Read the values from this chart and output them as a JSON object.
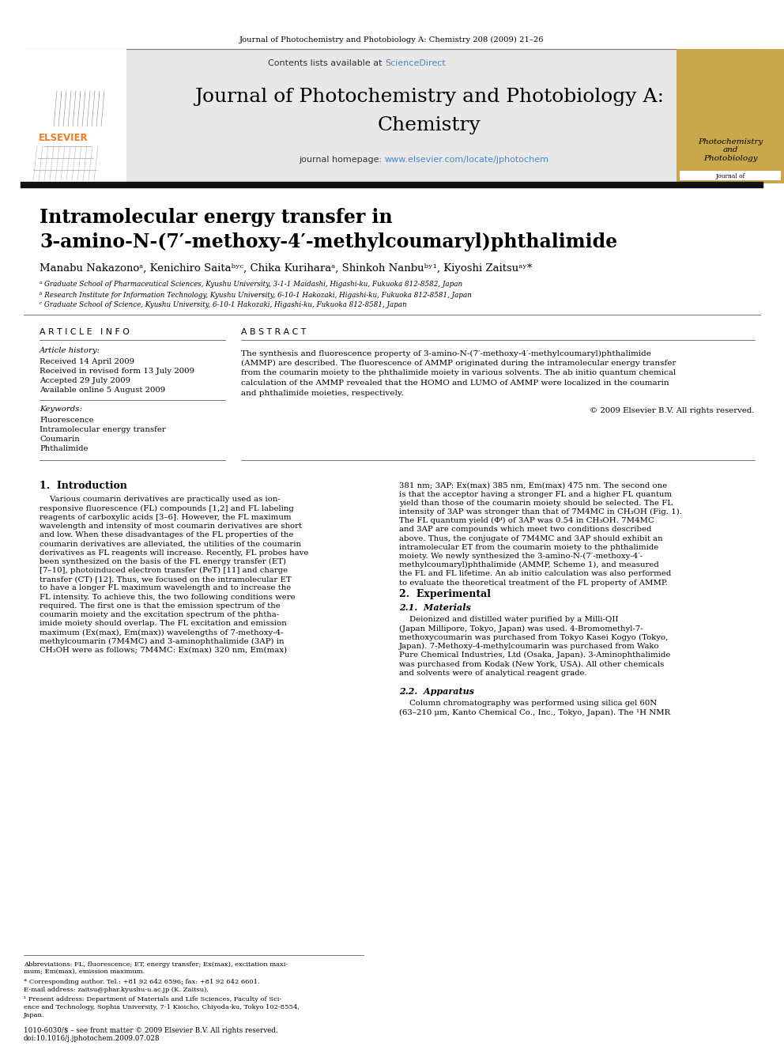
{
  "page_bg": "#ffffff",
  "top_journal_ref": "Journal of Photochemistry and Photobiology A: Chemistry 208 (2009) 21–26",
  "header_bg": "#e8e8e8",
  "header_contents_text": "Contents lists available at ",
  "header_sciencedirect": "ScienceDirect",
  "header_sciencedirect_color": "#4a86c8",
  "journal_title_line1": "Journal of Photochemistry and Photobiology A:",
  "journal_title_line2": "Chemistry",
  "journal_homepage_text": "journal homepage: ",
  "journal_homepage_url": "www.elsevier.com/locate/jphotochem",
  "journal_homepage_url_color": "#4a86c8",
  "article_title_line1": "Intramolecular energy transfer in",
  "article_title_line2": "3-amino-N-(7′-methoxy-4′-methylcoumaryl)phthalimide",
  "authors": "Manabu Nakazonoᵃ, Kenichiro Saitaᵇʸᶜ, Chika Kuriharaᵃ, Shinkoh Nanbuᵇʸ¹, Kiyoshi Zaitsuᵃʸ*",
  "affil_a": "ᵃ Graduate School of Pharmaceutical Sciences, Kyushu University, 3-1-1 Maidashi, Higashi-ku, Fukuoka 812-8582, Japan",
  "affil_b": "ᵇ Research Institute for Information Technology, Kyushu University, 6-10-1 Hakozaki, Higashi-ku, Fukuoka 812-8581, Japan",
  "affil_c": "ᶜ Graduate School of Science, Kyushu University, 6-10-1 Hakozaki, Higashi-ku, Fukuoka 812-8581, Japan",
  "article_info_header": "A R T I C L E   I N F O",
  "abstract_header": "A B S T R A C T",
  "article_history_label": "Article history:",
  "received": "Received 14 April 2009",
  "revised": "Received in revised form 13 July 2009",
  "accepted": "Accepted 29 July 2009",
  "available": "Available online 5 August 2009",
  "keywords_label": "Keywords:",
  "keyword1": "Fluorescence",
  "keyword2": "Intramolecular energy transfer",
  "keyword3": "Coumarin",
  "keyword4": "Phthalimide",
  "abstract_text": "The synthesis and fluorescence property of 3-amino-N-(7′-methoxy-4′-methylcoumaryl)phthalimide\n(AMMP) are described. The fluorescence of AMMP originated during the intramolecular energy transfer\nfrom the coumarin moiety to the phthalimide moiety in various solvents. The ab initio quantum chemical\ncalculation of the AMMP revealed that the HOMO and LUMO of AMMP were localized in the coumarin\nand phthalimide moieties, respectively.",
  "copyright": "© 2009 Elsevier B.V. All rights reserved.",
  "section1_header": "1.  Introduction",
  "intro_text_left": "    Various coumarin derivatives are practically used as ion-\nresponsive fluorescence (FL) compounds [1,2] and FL labeling\nreagents of carboxylic acids [3–6]. However, the FL maximum\nwavelength and intensity of most coumarin derivatives are short\nand low. When these disadvantages of the FL properties of the\ncoumarin derivatives are alleviated, the utilities of the coumarin\nderivatives as FL reagents will increase. Recently, FL probes have\nbeen synthesized on the basis of the FL energy transfer (ET)\n[7–10], photoinduced electron transfer (PeT) [11] and charge\ntransfer (CT) [12]. Thus, we focused on the intramolecular ET\nto have a longer FL maximum wavelength and to increase the\nFL intensity. To achieve this, the two following conditions were\nrequired. The first one is that the emission spectrum of the\ncoumarin moiety and the excitation spectrum of the phtha-\nimide moiety should overlap. The FL excitation and emission\nmaximum (Ex(max), Em(max)) wavelengths of 7-methoxy-4-\nmethylcoumarin (7M4MC) and 3-aminophthalimide (3AP) in\nCH₃OH were as follows; 7M4MC: Ex(max) 320 nm, Em(max)",
  "intro_text_right": "381 nm; 3AP: Ex(max) 385 nm, Em(max) 475 nm. The second one\nis that the acceptor having a stronger FL and a higher FL quantum\nyield than those of the coumarin moiety should be selected. The FL\nintensity of 3AP was stronger than that of 7M4MC in CH₃OH (Fig. 1).\nThe FL quantum yield (Φᶠ) of 3AP was 0.54 in CH₃OH. 7M4MC\nand 3AP are compounds which meet two conditions described\nabove. Thus, the conjugate of 7M4MC and 3AP should exhibit an\nintramolecular ET from the coumarin moiety to the phthalimide\nmoiety. We newly synthesized the 3-amino-N-(7′-methoxy-4′-\nmethylcoumaryl)phthalimide (AMMP, Scheme 1), and measured\nthe FL and FL lifetime. An ab initio calculation was also performed\nto evaluate the theoretical treatment of the FL property of AMMP.",
  "section2_header": "2.  Experimental",
  "section21_header": "2.1.  Materials",
  "materials_text": "    Deionized and distilled water purified by a Milli-QII\n(Japan Millipore, Tokyo, Japan) was used. 4-Bromomethyl-7-\nmethoxycoumarin was purchased from Tokyo Kasei Kogyo (Tokyo,\nJapan). 7-Methoxy-4-methylcoumarin was purchased from Wako\nPure Chemical Industries, Ltd (Osaka, Japan). 3-Aminophthalimide\nwas purchased from Kodak (New York, USA). All other chemicals\nand solvents were of analytical reagent grade.",
  "section22_header": "2.2.  Apparatus",
  "apparatus_text": "    Column chromatography was performed using silica gel 60N\n(63–210 μm, Kanto Chemical Co., Inc., Tokyo, Japan). The ¹H NMR",
  "footnote_abbrev": "Abbreviations: FL, fluorescence; ET, energy transfer; Ex(max), excitation maxi-",
  "footnote_abbrev2": "mum; Em(max), emission maximum.",
  "footnote_star": "* Corresponding author. Tel.: +81 92 642 6596; fax: +81 92 642 6601.",
  "footnote_email": "E-mail address: zaitsu@phar.kyushu-u.ac.jp (K. Zaitsu).",
  "footnote_1a": "¹ Present address: Department of Materials and Life Sciences, Faculty of Sci-",
  "footnote_1b": "ence and Technology, Sophia University, 7-1 Kioicho, Chiyoda-ku, Tokyo 102-8554,",
  "footnote_1c": "Japan.",
  "footer_issn": "1010-6030/$ – see front matter © 2009 Elsevier B.V. All rights reserved.",
  "footer_doi": "doi:10.1016/j.jphotochem.2009.07.028",
  "elsevier_orange": "#f47920",
  "dark_line_color": "#1a1a1a",
  "text_color": "#000000",
  "gray_text": "#555555"
}
